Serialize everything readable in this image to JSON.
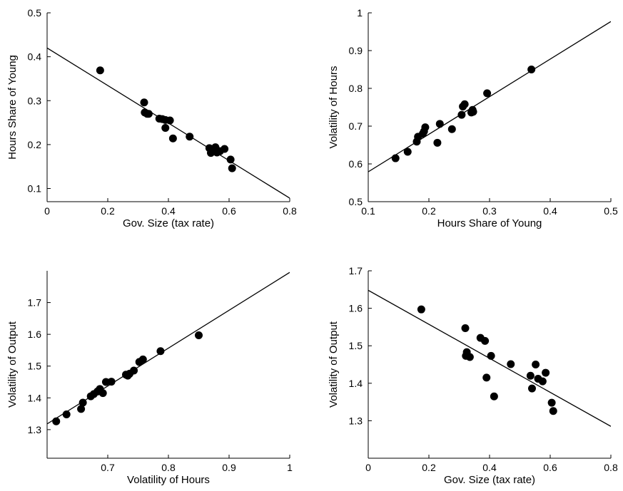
{
  "chart_data": [
    {
      "type": "scatter",
      "xlabel": "Gov. Size (tax rate)",
      "ylabel": "Hours Share of Young",
      "xlim": [
        0,
        0.8
      ],
      "ylim": [
        0.07,
        0.5
      ],
      "xticks": [
        0,
        0.2,
        0.4,
        0.6,
        0.8
      ],
      "xtick_labels": [
        "0",
        "0.2",
        "0.4",
        "0.6",
        "0.8"
      ],
      "yticks": [
        0.1,
        0.2,
        0.3,
        0.4,
        0.5
      ],
      "ytick_labels": [
        "0.1",
        "0.2",
        "0.3",
        "0.4",
        "0.5"
      ],
      "fit_line": {
        "x": [
          0,
          0.8
        ],
        "y": [
          0.42,
          0.078
        ]
      },
      "points": [
        {
          "x": 0.175,
          "y": 0.369
        },
        {
          "x": 0.32,
          "y": 0.296
        },
        {
          "x": 0.322,
          "y": 0.273
        },
        {
          "x": 0.33,
          "y": 0.27
        },
        {
          "x": 0.335,
          "y": 0.27
        },
        {
          "x": 0.37,
          "y": 0.259
        },
        {
          "x": 0.38,
          "y": 0.258
        },
        {
          "x": 0.39,
          "y": 0.238
        },
        {
          "x": 0.39,
          "y": 0.256
        },
        {
          "x": 0.405,
          "y": 0.255
        },
        {
          "x": 0.415,
          "y": 0.214
        },
        {
          "x": 0.47,
          "y": 0.218
        },
        {
          "x": 0.535,
          "y": 0.192
        },
        {
          "x": 0.54,
          "y": 0.181
        },
        {
          "x": 0.548,
          "y": 0.187
        },
        {
          "x": 0.555,
          "y": 0.194
        },
        {
          "x": 0.56,
          "y": 0.182
        },
        {
          "x": 0.57,
          "y": 0.185
        },
        {
          "x": 0.585,
          "y": 0.19
        },
        {
          "x": 0.605,
          "y": 0.166
        },
        {
          "x": 0.61,
          "y": 0.146
        }
      ]
    },
    {
      "type": "scatter",
      "xlabel": "Hours Share of Young",
      "ylabel": "Volatility of Hours",
      "xlim": [
        0.1,
        0.5
      ],
      "ylim": [
        0.5,
        1
      ],
      "xticks": [
        0.1,
        0.2,
        0.3,
        0.4,
        0.5
      ],
      "xtick_labels": [
        "0.1",
        "0.2",
        "0.3",
        "0.4",
        "0.5"
      ],
      "yticks": [
        0.5,
        0.6,
        0.7,
        0.8,
        0.9,
        1
      ],
      "ytick_labels": [
        "0.5",
        "0.6",
        "0.7",
        "0.8",
        "0.9",
        "1"
      ],
      "fit_line": {
        "x": [
          0.1,
          0.5
        ],
        "y": [
          0.579,
          0.977
        ]
      },
      "points": [
        {
          "x": 0.145,
          "y": 0.615
        },
        {
          "x": 0.165,
          "y": 0.632
        },
        {
          "x": 0.18,
          "y": 0.659
        },
        {
          "x": 0.182,
          "y": 0.672
        },
        {
          "x": 0.19,
          "y": 0.68
        },
        {
          "x": 0.192,
          "y": 0.686
        },
        {
          "x": 0.194,
          "y": 0.697
        },
        {
          "x": 0.214,
          "y": 0.656
        },
        {
          "x": 0.218,
          "y": 0.706
        },
        {
          "x": 0.238,
          "y": 0.692
        },
        {
          "x": 0.254,
          "y": 0.73
        },
        {
          "x": 0.256,
          "y": 0.752
        },
        {
          "x": 0.259,
          "y": 0.758
        },
        {
          "x": 0.27,
          "y": 0.736
        },
        {
          "x": 0.272,
          "y": 0.743
        },
        {
          "x": 0.273,
          "y": 0.738
        },
        {
          "x": 0.296,
          "y": 0.787
        },
        {
          "x": 0.369,
          "y": 0.85
        }
      ]
    },
    {
      "type": "scatter",
      "xlabel": "Volatility of Hours",
      "ylabel": "Volatility of Output",
      "xlim": [
        0.6,
        1
      ],
      "ylim": [
        1.21,
        1.8
      ],
      "xticks": [
        0.7,
        0.8,
        0.9,
        1
      ],
      "xtick_labels": [
        "0.7",
        "0.8",
        "0.9",
        "1"
      ],
      "yticks": [
        1.3,
        1.4,
        1.5,
        1.6,
        1.7
      ],
      "ytick_labels": [
        "1.3",
        "1.4",
        "1.5",
        "1.6",
        "1.7"
      ],
      "fit_line": {
        "x": [
          0.6,
          1
        ],
        "y": [
          1.318,
          1.795
        ]
      },
      "points": [
        {
          "x": 0.615,
          "y": 1.326
        },
        {
          "x": 0.632,
          "y": 1.348
        },
        {
          "x": 0.656,
          "y": 1.365
        },
        {
          "x": 0.659,
          "y": 1.385
        },
        {
          "x": 0.672,
          "y": 1.405
        },
        {
          "x": 0.677,
          "y": 1.412
        },
        {
          "x": 0.683,
          "y": 1.42
        },
        {
          "x": 0.687,
          "y": 1.428
        },
        {
          "x": 0.692,
          "y": 1.415
        },
        {
          "x": 0.697,
          "y": 1.45
        },
        {
          "x": 0.706,
          "y": 1.451
        },
        {
          "x": 0.73,
          "y": 1.473
        },
        {
          "x": 0.733,
          "y": 1.47
        },
        {
          "x": 0.736,
          "y": 1.476
        },
        {
          "x": 0.743,
          "y": 1.486
        },
        {
          "x": 0.752,
          "y": 1.513
        },
        {
          "x": 0.758,
          "y": 1.521
        },
        {
          "x": 0.787,
          "y": 1.547
        },
        {
          "x": 0.85,
          "y": 1.597
        }
      ]
    },
    {
      "type": "scatter",
      "xlabel": "Gov. Size (tax rate)",
      "ylabel": "Volatility of Output",
      "xlim": [
        0,
        0.8
      ],
      "ylim": [
        1.2,
        1.7
      ],
      "xticks": [
        0,
        0.2,
        0.4,
        0.6,
        0.8
      ],
      "xtick_labels": [
        "0",
        "0.2",
        "0.4",
        "0.6",
        "0.8"
      ],
      "yticks": [
        1.3,
        1.4,
        1.5,
        1.6,
        1.7
      ],
      "ytick_labels": [
        "1.3",
        "1.4",
        "1.5",
        "1.6",
        "1.7"
      ],
      "fit_line": {
        "x": [
          0,
          0.8
        ],
        "y": [
          1.648,
          1.285
        ]
      },
      "points": [
        {
          "x": 0.175,
          "y": 1.597
        },
        {
          "x": 0.32,
          "y": 1.547
        },
        {
          "x": 0.322,
          "y": 1.473
        },
        {
          "x": 0.325,
          "y": 1.483
        },
        {
          "x": 0.335,
          "y": 1.47
        },
        {
          "x": 0.37,
          "y": 1.521
        },
        {
          "x": 0.385,
          "y": 1.513
        },
        {
          "x": 0.39,
          "y": 1.415
        },
        {
          "x": 0.405,
          "y": 1.473
        },
        {
          "x": 0.415,
          "y": 1.365
        },
        {
          "x": 0.47,
          "y": 1.451
        },
        {
          "x": 0.535,
          "y": 1.42
        },
        {
          "x": 0.54,
          "y": 1.386
        },
        {
          "x": 0.552,
          "y": 1.45
        },
        {
          "x": 0.56,
          "y": 1.412
        },
        {
          "x": 0.575,
          "y": 1.405
        },
        {
          "x": 0.585,
          "y": 1.428
        },
        {
          "x": 0.605,
          "y": 1.348
        },
        {
          "x": 0.61,
          "y": 1.326
        }
      ]
    }
  ]
}
